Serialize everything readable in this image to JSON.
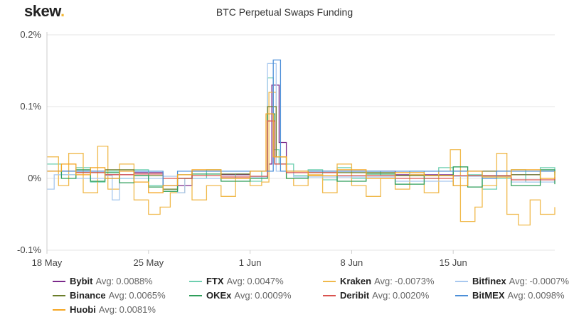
{
  "brand": {
    "name": "skew",
    "dot": "."
  },
  "chart_data": {
    "type": "line",
    "title": "BTC Perpetual Swaps Funding",
    "x_range_days": [
      0,
      35
    ],
    "x_ticks": [
      {
        "label": "18 May",
        "day": 0
      },
      {
        "label": "25 May",
        "day": 7
      },
      {
        "label": "1 Jun",
        "day": 14
      },
      {
        "label": "8 Jun",
        "day": 21
      },
      {
        "label": "15 Jun",
        "day": 28
      }
    ],
    "ylim": [
      -0.1,
      0.2
    ],
    "y_ticks": [
      {
        "label": "0.2%",
        "value": 0.2
      },
      {
        "label": "0.1%",
        "value": 0.1
      },
      {
        "label": "0%",
        "value": 0
      },
      {
        "label": "-0.1%",
        "value": -0.1
      }
    ],
    "series": [
      {
        "name": "Bybit",
        "avg_label": "Avg:",
        "avg": "0.0088%",
        "color": "#7b2a8b",
        "points": [
          [
            0,
            0.01
          ],
          [
            2,
            0.01
          ],
          [
            4,
            0.005
          ],
          [
            6,
            0.008
          ],
          [
            8,
            -0.01
          ],
          [
            10,
            0.01
          ],
          [
            12,
            0.005
          ],
          [
            14,
            0.01
          ],
          [
            15.3,
            0.02
          ],
          [
            15.5,
            0.13
          ],
          [
            16,
            0.05
          ],
          [
            16.5,
            0.01
          ],
          [
            20,
            0.01
          ],
          [
            24,
            0.005
          ],
          [
            28,
            0.01
          ],
          [
            32,
            0.005
          ],
          [
            34,
            0.01
          ],
          [
            35,
            0.01
          ]
        ]
      },
      {
        "name": "FTX",
        "avg_label": "Avg:",
        "avg": "0.0047%",
        "color": "#6ecfb0",
        "points": [
          [
            0,
            0.02
          ],
          [
            1,
            0.005
          ],
          [
            2,
            0.015
          ],
          [
            3,
            -0.005
          ],
          [
            4,
            0.01
          ],
          [
            5,
            0.0
          ],
          [
            6,
            0.012
          ],
          [
            7,
            -0.01
          ],
          [
            8,
            -0.015
          ],
          [
            9,
            0.005
          ],
          [
            10,
            0.0
          ],
          [
            11,
            0.012
          ],
          [
            12,
            0.0
          ],
          [
            13,
            0.006
          ],
          [
            14,
            -0.004
          ],
          [
            14.8,
            0.01
          ],
          [
            15.2,
            0.14
          ],
          [
            15.6,
            0.04
          ],
          [
            16,
            0.02
          ],
          [
            17,
            0.004
          ],
          [
            18,
            0.012
          ],
          [
            19,
            -0.002
          ],
          [
            20,
            0.015
          ],
          [
            21,
            0.0
          ],
          [
            22,
            0.01
          ],
          [
            23,
            0.004
          ],
          [
            24,
            -0.008
          ],
          [
            25,
            0.01
          ],
          [
            26,
            0.0
          ],
          [
            27,
            0.015
          ],
          [
            28,
            -0.01
          ],
          [
            29,
            0.005
          ],
          [
            30,
            -0.015
          ],
          [
            31,
            0.0
          ],
          [
            32,
            0.012
          ],
          [
            33,
            -0.005
          ],
          [
            34,
            0.015
          ],
          [
            35,
            0.005
          ]
        ]
      },
      {
        "name": "Kraken",
        "avg_label": "Avg:",
        "avg": "-0.0073%",
        "color": "#f0b94c",
        "points": [
          [
            0,
            0.03
          ],
          [
            0.8,
            -0.01
          ],
          [
            1.5,
            0.035
          ],
          [
            2.5,
            -0.02
          ],
          [
            3.5,
            0.045
          ],
          [
            4.2,
            -0.015
          ],
          [
            5,
            0.02
          ],
          [
            6,
            -0.03
          ],
          [
            7,
            -0.05
          ],
          [
            7.8,
            -0.04
          ],
          [
            8.5,
            -0.02
          ],
          [
            9.5,
            0.0
          ],
          [
            10,
            -0.03
          ],
          [
            11,
            -0.01
          ],
          [
            12,
            -0.025
          ],
          [
            13,
            0.0
          ],
          [
            14,
            -0.01
          ],
          [
            14.8,
            -0.005
          ],
          [
            15.3,
            0.12
          ],
          [
            15.8,
            0.03
          ],
          [
            16.5,
            0.0
          ],
          [
            17,
            -0.01
          ],
          [
            18,
            0.005
          ],
          [
            19,
            -0.02
          ],
          [
            20,
            0.02
          ],
          [
            21,
            -0.01
          ],
          [
            22,
            -0.025
          ],
          [
            23,
            0.0
          ],
          [
            24,
            -0.015
          ],
          [
            25,
            0.005
          ],
          [
            26,
            -0.02
          ],
          [
            27,
            0.01
          ],
          [
            27.8,
            0.04
          ],
          [
            28.5,
            -0.06
          ],
          [
            29.5,
            -0.04
          ],
          [
            30,
            -0.01
          ],
          [
            31,
            0.035
          ],
          [
            31.7,
            -0.05
          ],
          [
            32.5,
            -0.065
          ],
          [
            33.3,
            -0.03
          ],
          [
            34,
            -0.05
          ],
          [
            35,
            -0.04
          ]
        ]
      },
      {
        "name": "Bitfinex",
        "avg_label": "Avg:",
        "avg": "-0.0007%",
        "color": "#a8c8ef",
        "points": [
          [
            0,
            -0.015
          ],
          [
            0.5,
            0.005
          ],
          [
            2,
            0.0
          ],
          [
            4,
            0.004
          ],
          [
            4.5,
            -0.03
          ],
          [
            5,
            0.0
          ],
          [
            8,
            0.003
          ],
          [
            9,
            -0.02
          ],
          [
            9.5,
            0.0
          ],
          [
            14,
            0.002
          ],
          [
            15.2,
            0.16
          ],
          [
            15.8,
            0.01
          ],
          [
            17,
            0.002
          ],
          [
            24,
            -0.004
          ],
          [
            28,
            0.003
          ],
          [
            32,
            -0.005
          ],
          [
            35,
            0.0
          ]
        ]
      },
      {
        "name": "Binance",
        "avg_label": "Avg:",
        "avg": "0.0065%",
        "color": "#6b7d2a",
        "points": [
          [
            0,
            0.01
          ],
          [
            2,
            0.008
          ],
          [
            4,
            0.012
          ],
          [
            6,
            0.004
          ],
          [
            8,
            -0.015
          ],
          [
            9,
            0.0
          ],
          [
            10,
            0.01
          ],
          [
            12,
            0.006
          ],
          [
            14,
            0.01
          ],
          [
            15.2,
            0.1
          ],
          [
            15.8,
            0.03
          ],
          [
            16.5,
            0.01
          ],
          [
            20,
            0.008
          ],
          [
            24,
            0.004
          ],
          [
            28,
            0.01
          ],
          [
            32,
            0.005
          ],
          [
            34,
            0.01
          ],
          [
            35,
            0.008
          ]
        ]
      },
      {
        "name": "OKEx",
        "avg_label": "Avg:",
        "avg": "0.0009%",
        "color": "#2e9e5a",
        "points": [
          [
            0,
            0.01
          ],
          [
            1,
            0.0
          ],
          [
            2,
            0.012
          ],
          [
            3,
            -0.004
          ],
          [
            4,
            0.008
          ],
          [
            5,
            -0.006
          ],
          [
            6,
            0.004
          ],
          [
            7,
            -0.012
          ],
          [
            8,
            -0.018
          ],
          [
            9,
            0.0
          ],
          [
            10,
            0.006
          ],
          [
            12,
            -0.004
          ],
          [
            14,
            0.0
          ],
          [
            15.2,
            0.09
          ],
          [
            15.7,
            0.02
          ],
          [
            16.5,
            0.0
          ],
          [
            18,
            0.008
          ],
          [
            20,
            -0.004
          ],
          [
            22,
            0.006
          ],
          [
            24,
            -0.008
          ],
          [
            26,
            0.004
          ],
          [
            28,
            0.016
          ],
          [
            29,
            -0.012
          ],
          [
            30,
            0.004
          ],
          [
            32,
            -0.01
          ],
          [
            34,
            0.012
          ],
          [
            35,
            -0.008
          ]
        ]
      },
      {
        "name": "Deribit",
        "avg_label": "Avg:",
        "avg": "0.0020%",
        "color": "#d9534f",
        "points": [
          [
            0,
            0.01
          ],
          [
            2,
            0.008
          ],
          [
            4,
            0.005
          ],
          [
            6,
            0.006
          ],
          [
            8,
            0.0
          ],
          [
            10,
            0.004
          ],
          [
            12,
            0.002
          ],
          [
            14,
            0.003
          ],
          [
            15.2,
            0.08
          ],
          [
            15.7,
            0.02
          ],
          [
            16.5,
            0.008
          ],
          [
            20,
            0.004
          ],
          [
            24,
            0.0
          ],
          [
            28,
            0.004
          ],
          [
            32,
            -0.002
          ],
          [
            35,
            0.002
          ]
        ]
      },
      {
        "name": "BitMEX",
        "avg_label": "Avg:",
        "avg": "0.0098%",
        "color": "#4c8fd8",
        "points": [
          [
            0,
            0.01
          ],
          [
            3,
            0.01
          ],
          [
            4,
            0.0
          ],
          [
            5,
            0.01
          ],
          [
            8,
            -0.01
          ],
          [
            9,
            0.01
          ],
          [
            14,
            0.01
          ],
          [
            15.6,
            0.165
          ],
          [
            16.1,
            0.01
          ],
          [
            20,
            0.01
          ],
          [
            24,
            0.01
          ],
          [
            28,
            0.01
          ],
          [
            30,
            0.0
          ],
          [
            31,
            0.01
          ],
          [
            35,
            0.01
          ]
        ]
      },
      {
        "name": "Huobi",
        "avg_label": "Avg:",
        "avg": "0.0081%",
        "color": "#f5a623",
        "points": [
          [
            0,
            0.01
          ],
          [
            1,
            0.02
          ],
          [
            2,
            0.005
          ],
          [
            3,
            0.015
          ],
          [
            4,
            0.0
          ],
          [
            5,
            0.01
          ],
          [
            6,
            -0.005
          ],
          [
            7,
            -0.02
          ],
          [
            8,
            -0.01
          ],
          [
            9,
            0.005
          ],
          [
            10,
            0.012
          ],
          [
            12,
            0.0
          ],
          [
            14,
            0.01
          ],
          [
            15.1,
            0.09
          ],
          [
            15.6,
            0.03
          ],
          [
            16.5,
            0.01
          ],
          [
            18,
            0.004
          ],
          [
            20,
            0.012
          ],
          [
            22,
            0.0
          ],
          [
            24,
            0.008
          ],
          [
            26,
            0.004
          ],
          [
            28,
            -0.01
          ],
          [
            29,
            0.01
          ],
          [
            30,
            0.002
          ],
          [
            32,
            0.012
          ],
          [
            34,
            0.0
          ],
          [
            35,
            0.01
          ]
        ]
      }
    ]
  }
}
